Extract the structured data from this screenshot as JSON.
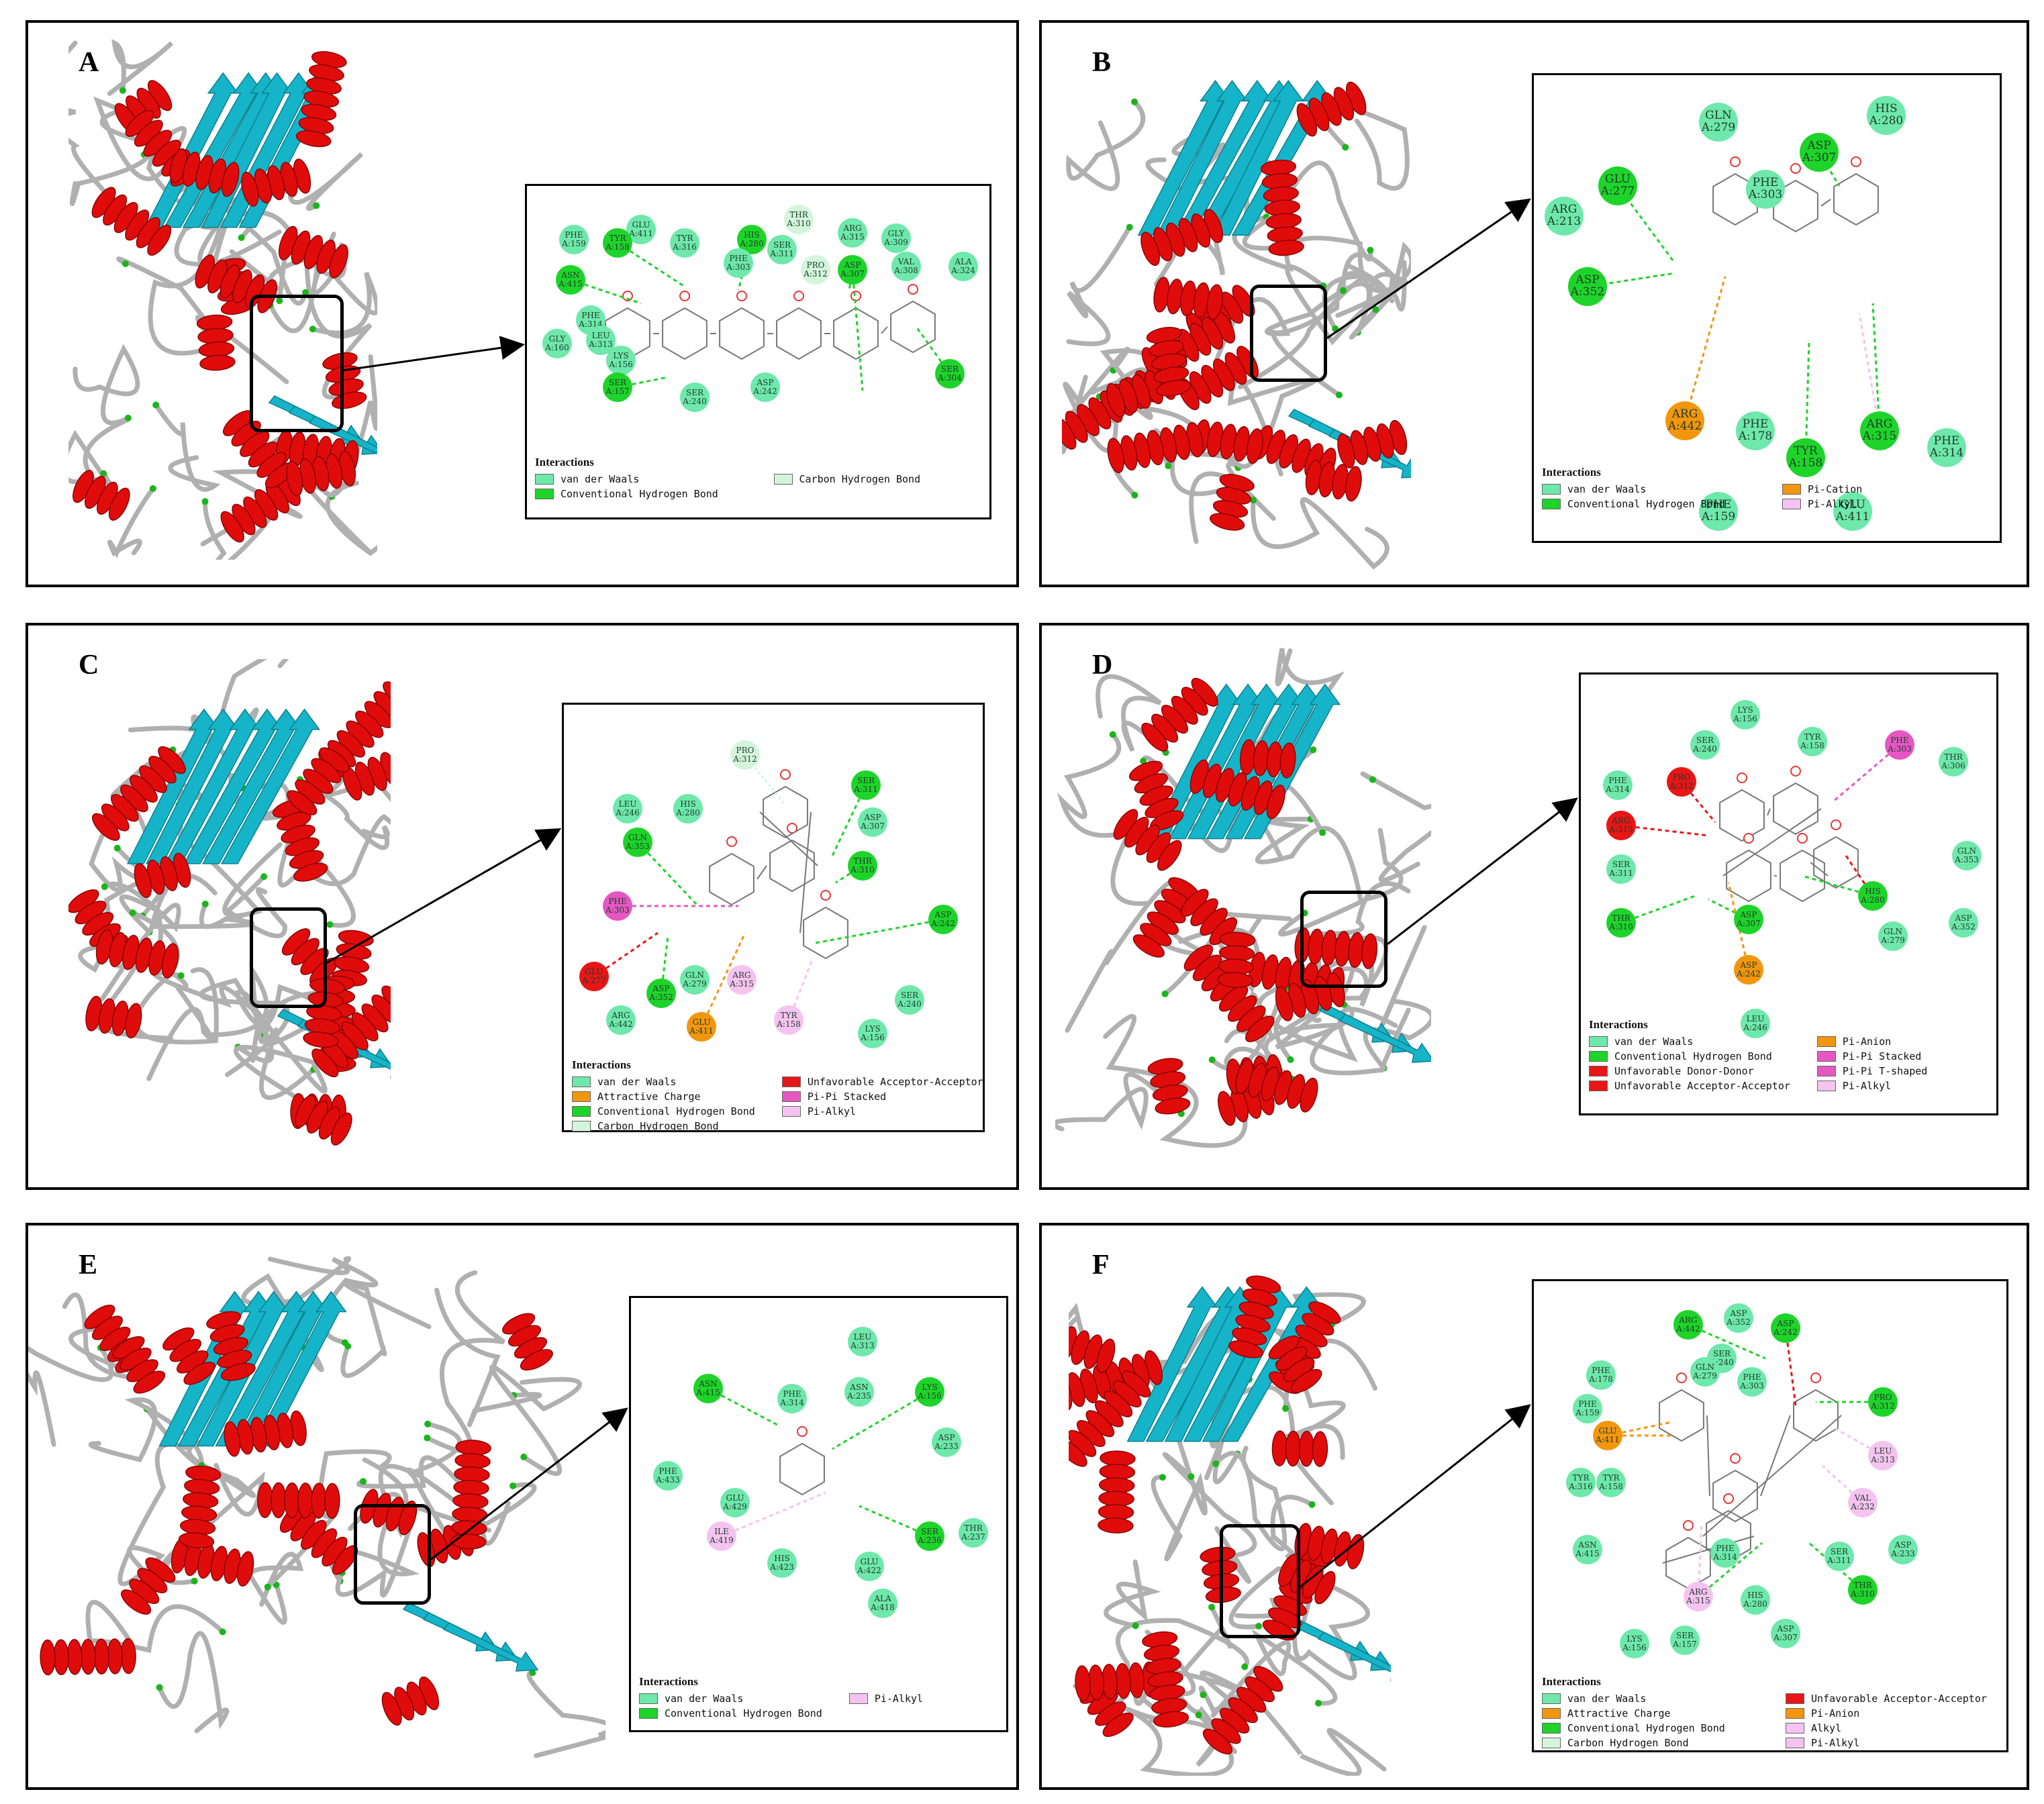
{
  "colors": {
    "van_der_waals": "#6ee8ab",
    "conventional_h_bond": "#1ed42a",
    "carbon_h_bond": "#d4f5dc",
    "pi_cation": "#f2960e",
    "attractive_charge": "#f2960e",
    "pi_anion": "#f2960e",
    "pi_alkyl": "#f5c3f0",
    "alkyl": "#f5c3f0",
    "pi_pi_stacked": "#e657c2",
    "pi_pi_t_shaped": "#e657c2",
    "unfavorable": "#e81616",
    "helix": "#e00c0c",
    "sheet": "#16b4c8",
    "coil": "#b0b0b0",
    "turn": "#1bb51b"
  },
  "panels": [
    {
      "label": "A",
      "legend_title": "Interactions",
      "legend": [
        {
          "text": "van der Waals",
          "color": "van_der_waals"
        },
        {
          "text": "Carbon Hydrogen Bond",
          "color": "carbon_h_bond"
        },
        {
          "text": "Conventional Hydrogen Bond",
          "color": "conventional_h_bond"
        }
      ],
      "residues": [
        {
          "name": "GLU",
          "id": "A:411",
          "type": "van_der_waals"
        },
        {
          "name": "THR",
          "id": "A:310",
          "type": "carbon_h_bond"
        },
        {
          "name": "PHE",
          "id": "A:159",
          "type": "van_der_waals"
        },
        {
          "name": "TYR",
          "id": "A:158",
          "type": "conventional_h_bond"
        },
        {
          "name": "TYR",
          "id": "A:316",
          "type": "van_der_waals"
        },
        {
          "name": "HIS",
          "id": "A:280",
          "type": "conventional_h_bond"
        },
        {
          "name": "ARG",
          "id": "A:315",
          "type": "van_der_waals"
        },
        {
          "name": "GLY",
          "id": "A:309",
          "type": "van_der_waals"
        },
        {
          "name": "PHE",
          "id": "A:303",
          "type": "van_der_waals"
        },
        {
          "name": "SER",
          "id": "A:311",
          "type": "van_der_waals"
        },
        {
          "name": "PRO",
          "id": "A:312",
          "type": "carbon_h_bond"
        },
        {
          "name": "ASP",
          "id": "A:307",
          "type": "conventional_h_bond"
        },
        {
          "name": "VAL",
          "id": "A:308",
          "type": "van_der_waals"
        },
        {
          "name": "ALA",
          "id": "A:324",
          "type": "van_der_waals"
        },
        {
          "name": "ASN",
          "id": "A:415",
          "type": "conventional_h_bond"
        },
        {
          "name": "PHE",
          "id": "A:314",
          "type": "van_der_waals"
        },
        {
          "name": "GLY",
          "id": "A:160",
          "type": "van_der_waals"
        },
        {
          "name": "LEU",
          "id": "A:313",
          "type": "van_der_waals"
        },
        {
          "name": "LYS",
          "id": "A:156",
          "type": "van_der_waals"
        },
        {
          "name": "SER",
          "id": "A:304",
          "type": "conventional_h_bond"
        },
        {
          "name": "SER",
          "id": "A:157",
          "type": "conventional_h_bond"
        },
        {
          "name": "ASP",
          "id": "A:242",
          "type": "van_der_waals"
        },
        {
          "name": "SER",
          "id": "A:240",
          "type": "van_der_waals"
        }
      ]
    },
    {
      "label": "B",
      "legend_title": "Interactions",
      "legend": [
        {
          "text": "van der Waals",
          "color": "van_der_waals"
        },
        {
          "text": "Pi-Cation",
          "color": "pi_cation"
        },
        {
          "text": "Conventional Hydrogen Bond",
          "color": "conventional_h_bond"
        },
        {
          "text": "Pi-Alkyl",
          "color": "pi_alkyl"
        }
      ],
      "residues": [
        {
          "name": "GLN",
          "id": "A:279",
          "type": "van_der_waals"
        },
        {
          "name": "HIS",
          "id": "A:280",
          "type": "van_der_waals"
        },
        {
          "name": "ASP",
          "id": "A:307",
          "type": "conventional_h_bond"
        },
        {
          "name": "GLU",
          "id": "A:277",
          "type": "conventional_h_bond"
        },
        {
          "name": "PHE",
          "id": "A:303",
          "type": "van_der_waals"
        },
        {
          "name": "ARG",
          "id": "A:213",
          "type": "van_der_waals"
        },
        {
          "name": "ASP",
          "id": "A:352",
          "type": "conventional_h_bond"
        },
        {
          "name": "ARG",
          "id": "A:442",
          "type": "pi_cation"
        },
        {
          "name": "PHE",
          "id": "A:178",
          "type": "van_der_waals"
        },
        {
          "name": "TYR",
          "id": "A:158",
          "type": "conventional_h_bond"
        },
        {
          "name": "ARG",
          "id": "A:315",
          "type": "conventional_h_bond"
        },
        {
          "name": "PHE",
          "id": "A:314",
          "type": "van_der_waals"
        },
        {
          "name": "PHE",
          "id": "A:159",
          "type": "van_der_waals"
        },
        {
          "name": "GLU",
          "id": "A:411",
          "type": "van_der_waals"
        }
      ]
    },
    {
      "label": "C",
      "legend_title": "Interactions",
      "legend": [
        {
          "text": "van der Waals",
          "color": "van_der_waals"
        },
        {
          "text": "Unfavorable Acceptor-Acceptor",
          "color": "unfavorable"
        },
        {
          "text": "Attractive Charge",
          "color": "attractive_charge"
        },
        {
          "text": "Pi-Pi Stacked",
          "color": "pi_pi_stacked"
        },
        {
          "text": "Conventional Hydrogen Bond",
          "color": "conventional_h_bond"
        },
        {
          "text": "Pi-Alkyl",
          "color": "pi_alkyl"
        },
        {
          "text": "Carbon Hydrogen Bond",
          "color": "carbon_h_bond"
        }
      ],
      "residues": [
        {
          "name": "PRO",
          "id": "A:312",
          "type": "carbon_h_bond"
        },
        {
          "name": "SER",
          "id": "A:311",
          "type": "conventional_h_bond"
        },
        {
          "name": "LEU",
          "id": "A:246",
          "type": "van_der_waals"
        },
        {
          "name": "HIS",
          "id": "A:280",
          "type": "van_der_waals"
        },
        {
          "name": "ASP",
          "id": "A:307",
          "type": "van_der_waals"
        },
        {
          "name": "GLN",
          "id": "A:353",
          "type": "conventional_h_bond"
        },
        {
          "name": "THR",
          "id": "A:310",
          "type": "conventional_h_bond"
        },
        {
          "name": "PHE",
          "id": "A:303",
          "type": "pi_pi_stacked"
        },
        {
          "name": "ASP",
          "id": "A:242",
          "type": "conventional_h_bond"
        },
        {
          "name": "GLU",
          "id": "A:277",
          "type": "unfavorable"
        },
        {
          "name": "GLN",
          "id": "A:279",
          "type": "van_der_waals"
        },
        {
          "name": "ARG",
          "id": "A:315",
          "type": "pi_alkyl"
        },
        {
          "name": "ASP",
          "id": "A:352",
          "type": "conventional_h_bond"
        },
        {
          "name": "SER",
          "id": "A:240",
          "type": "van_der_waals"
        },
        {
          "name": "ARG",
          "id": "A:442",
          "type": "van_der_waals"
        },
        {
          "name": "GLU",
          "id": "A:411",
          "type": "attractive_charge"
        },
        {
          "name": "TYR",
          "id": "A:158",
          "type": "pi_alkyl"
        },
        {
          "name": "LYS",
          "id": "A:156",
          "type": "van_der_waals"
        }
      ]
    },
    {
      "label": "D",
      "legend_title": "Interactions",
      "legend": [
        {
          "text": "van der Waals",
          "color": "van_der_waals"
        },
        {
          "text": "Pi-Anion",
          "color": "pi_anion"
        },
        {
          "text": "Conventional Hydrogen Bond",
          "color": "conventional_h_bond"
        },
        {
          "text": "Pi-Pi Stacked",
          "color": "pi_pi_stacked"
        },
        {
          "text": "Unfavorable Donor-Donor",
          "color": "unfavorable"
        },
        {
          "text": "Pi-Pi T-shaped",
          "color": "pi_pi_t_shaped"
        },
        {
          "text": "Unfavorable Acceptor-Acceptor",
          "color": "unfavorable"
        },
        {
          "text": "Pi-Alkyl",
          "color": "pi_alkyl"
        }
      ],
      "residues": [
        {
          "name": "LYS",
          "id": "A:156",
          "type": "van_der_waals"
        },
        {
          "name": "SER",
          "id": "A:240",
          "type": "van_der_waals"
        },
        {
          "name": "TYR",
          "id": "A:158",
          "type": "van_der_waals"
        },
        {
          "name": "PHE",
          "id": "A:303",
          "type": "pi_pi_t_shaped"
        },
        {
          "name": "THR",
          "id": "A:306",
          "type": "van_der_waals"
        },
        {
          "name": "PHE",
          "id": "A:314",
          "type": "van_der_waals"
        },
        {
          "name": "PRO",
          "id": "A:312",
          "type": "unfavorable"
        },
        {
          "name": "ARG",
          "id": "A:315",
          "type": "unfavorable"
        },
        {
          "name": "GLN",
          "id": "A:353",
          "type": "van_der_waals"
        },
        {
          "name": "SER",
          "id": "A:311",
          "type": "van_der_waals"
        },
        {
          "name": "HIS",
          "id": "A:280",
          "type": "conventional_h_bond"
        },
        {
          "name": "ASP",
          "id": "A:352",
          "type": "van_der_waals"
        },
        {
          "name": "THR",
          "id": "A:310",
          "type": "conventional_h_bond"
        },
        {
          "name": "ASP",
          "id": "A:307",
          "type": "conventional_h_bond"
        },
        {
          "name": "GLN",
          "id": "A:279",
          "type": "van_der_waals"
        },
        {
          "name": "ASP",
          "id": "A:242",
          "type": "pi_anion"
        },
        {
          "name": "LEU",
          "id": "A:246",
          "type": "van_der_waals"
        }
      ]
    },
    {
      "label": "E",
      "legend_title": "Interactions",
      "legend": [
        {
          "text": "van der Waals",
          "color": "van_der_waals"
        },
        {
          "text": "Pi-Alkyl",
          "color": "pi_alkyl"
        },
        {
          "text": "Conventional Hydrogen Bond",
          "color": "conventional_h_bond"
        }
      ],
      "residues": [
        {
          "name": "LEU",
          "id": "A:313",
          "type": "van_der_waals"
        },
        {
          "name": "ASN",
          "id": "A:415",
          "type": "conventional_h_bond"
        },
        {
          "name": "ASN",
          "id": "A:235",
          "type": "van_der_waals"
        },
        {
          "name": "PHE",
          "id": "A:314",
          "type": "van_der_waals"
        },
        {
          "name": "LYS",
          "id": "A:156",
          "type": "conventional_h_bond"
        },
        {
          "name": "ASP",
          "id": "A:233",
          "type": "van_der_waals"
        },
        {
          "name": "PHE",
          "id": "A:433",
          "type": "van_der_waals"
        },
        {
          "name": "GLU",
          "id": "A:429",
          "type": "van_der_waals"
        },
        {
          "name": "ILE",
          "id": "A:419",
          "type": "pi_alkyl"
        },
        {
          "name": "SER",
          "id": "A:236",
          "type": "conventional_h_bond"
        },
        {
          "name": "THR",
          "id": "A:237",
          "type": "van_der_waals"
        },
        {
          "name": "HIS",
          "id": "A:423",
          "type": "van_der_waals"
        },
        {
          "name": "GLU",
          "id": "A:422",
          "type": "van_der_waals"
        },
        {
          "name": "ALA",
          "id": "A:418",
          "type": "van_der_waals"
        }
      ]
    },
    {
      "label": "F",
      "legend_title": "Interactions",
      "legend": [
        {
          "text": "van der Waals",
          "color": "van_der_waals"
        },
        {
          "text": "Unfavorable Acceptor-Acceptor",
          "color": "unfavorable"
        },
        {
          "text": "Attractive Charge",
          "color": "attractive_charge"
        },
        {
          "text": "Pi-Anion",
          "color": "pi_anion"
        },
        {
          "text": "Conventional Hydrogen Bond",
          "color": "conventional_h_bond"
        },
        {
          "text": "Alkyl",
          "color": "alkyl"
        },
        {
          "text": "Carbon Hydrogen Bond",
          "color": "carbon_h_bond"
        },
        {
          "text": "Pi-Alkyl",
          "color": "pi_alkyl"
        }
      ],
      "residues": [
        {
          "name": "ASP",
          "id": "A:352",
          "type": "van_der_waals"
        },
        {
          "name": "ARG",
          "id": "A:442",
          "type": "conventional_h_bond"
        },
        {
          "name": "ASP",
          "id": "A:242",
          "type": "conventional_h_bond"
        },
        {
          "name": "SER",
          "id": "A:240",
          "type": "van_der_waals"
        },
        {
          "name": "GLN",
          "id": "A:279",
          "type": "van_der_waals"
        },
        {
          "name": "PHE",
          "id": "A:303",
          "type": "van_der_waals"
        },
        {
          "name": "PHE",
          "id": "A:178",
          "type": "van_der_waals"
        },
        {
          "name": "PRO",
          "id": "A:312",
          "type": "conventional_h_bond"
        },
        {
          "name": "PHE",
          "id": "A:159",
          "type": "van_der_waals"
        },
        {
          "name": "GLU",
          "id": "A:411",
          "type": "attractive_charge"
        },
        {
          "name": "LEU",
          "id": "A:313",
          "type": "pi_alkyl"
        },
        {
          "name": "TYR",
          "id": "A:316",
          "type": "van_der_waals"
        },
        {
          "name": "TYR",
          "id": "A:158",
          "type": "van_der_waals"
        },
        {
          "name": "VAL",
          "id": "A:232",
          "type": "pi_alkyl"
        },
        {
          "name": "ASN",
          "id": "A:415",
          "type": "van_der_waals"
        },
        {
          "name": "PHE",
          "id": "A:314",
          "type": "van_der_waals"
        },
        {
          "name": "SER",
          "id": "A:311",
          "type": "van_der_waals"
        },
        {
          "name": "ASP",
          "id": "A:233",
          "type": "van_der_waals"
        },
        {
          "name": "ARG",
          "id": "A:315",
          "type": "pi_alkyl"
        },
        {
          "name": "HIS",
          "id": "A:280",
          "type": "van_der_waals"
        },
        {
          "name": "THR",
          "id": "A:310",
          "type": "conventional_h_bond"
        },
        {
          "name": "LYS",
          "id": "A:156",
          "type": "van_der_waals"
        },
        {
          "name": "SER",
          "id": "A:157",
          "type": "van_der_waals"
        },
        {
          "name": "ASP",
          "id": "A:307",
          "type": "van_der_waals"
        }
      ]
    }
  ]
}
